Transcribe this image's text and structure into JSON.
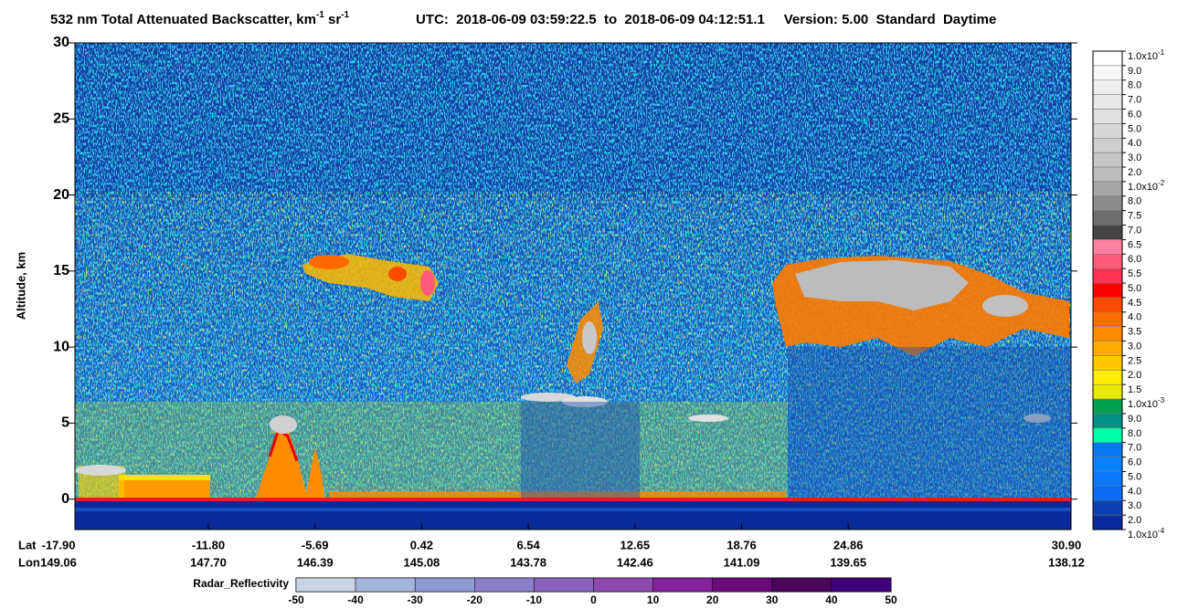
{
  "chart_data": {
    "type": "curtain",
    "title": [
      "532 nm Total Attenuated Backscatter, km",
      "-1",
      " sr",
      "-1"
    ],
    "subtitle": "UTC:  2018-06-09 03:59:22.5  to  2018-06-09 04:12:51.1     Version: 5.00  Standard  Daytime",
    "ylabel": "Altitude, km",
    "ylim": [
      -2,
      30
    ],
    "yticks": [
      0,
      5,
      10,
      15,
      20,
      25,
      30
    ],
    "x_label_names": [
      "Lat",
      "Lon"
    ],
    "lat_labels": [
      "-17.90",
      "-11.80",
      "-5.69",
      "0.42",
      "6.54",
      "12.65",
      "18.76",
      "24.86",
      "30.90"
    ],
    "lon_labels": [
      "149.06",
      "147.70",
      "146.39",
      "145.08",
      "143.78",
      "142.46",
      "141.09",
      "139.65",
      "138.12"
    ],
    "colorbar": {
      "labels": [
        {
          "text": "1.0x10",
          "sup": "-1"
        },
        "9.0",
        "8.0",
        "7.0",
        "6.0",
        "5.0",
        "4.0",
        "3.0",
        "2.0",
        {
          "text": "1.0x10",
          "sup": "-2"
        },
        "8.0",
        "7.5",
        "7.0",
        "6.5",
        "6.0",
        "5.5",
        "5.0",
        "4.5",
        "4.0",
        "3.5",
        "3.0",
        "2.5",
        "2.0",
        "1.5",
        {
          "text": "1.0x10",
          "sup": "-3"
        },
        "9.0",
        "8.0",
        "7.0",
        "6.0",
        "5.0",
        "4.0",
        "3.0",
        "2.0",
        {
          "text": "1.0x10",
          "sup": "-4"
        }
      ],
      "colors": [
        "#ffffff",
        "#f7f7f7",
        "#efefef",
        "#e7e7e7",
        "#dfdfdf",
        "#d7d7d7",
        "#cfcfcf",
        "#c6c6c6",
        "#bcbcbc",
        "#a5a5a5",
        "#8c8c8c",
        "#6e6e6e",
        "#444444",
        "#ff7fa0",
        "#ff5a7a",
        "#ff3355",
        "#ff0000",
        "#ff4a00",
        "#ff6e00",
        "#ff8c00",
        "#ffaa00",
        "#ffc800",
        "#ffee00",
        "#e8e800",
        "#00a050",
        "#008f80",
        "#00ffa8",
        "#0a78f0",
        "#0a82ff",
        "#0a78ff",
        "#0a6cf5",
        "#0a40b0",
        "#0a2aa0"
      ]
    },
    "radar": {
      "label": "Radar_Reflectivity",
      "ticks": [
        -50,
        -40,
        -30,
        -20,
        -10,
        0,
        10,
        20,
        30,
        40,
        50
      ],
      "colors": [
        "#c6d4e6",
        "#a4b6dc",
        "#8e9ad2",
        "#8a7ec8",
        "#8a62bc",
        "#8c4aae",
        "#84229a",
        "#6a0c78",
        "#4a0458",
        "#40007a"
      ]
    }
  }
}
